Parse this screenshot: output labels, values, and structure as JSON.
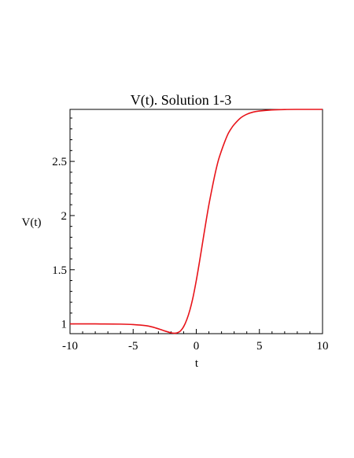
{
  "chart_data": {
    "type": "line",
    "title": "V(t). Solution 1-3",
    "xlabel": "t",
    "ylabel": "V(t)",
    "xlim": [
      -10,
      10
    ],
    "ylim": [
      0.91,
      2.98
    ],
    "xticks": [
      -10,
      -5,
      0,
      5,
      10
    ],
    "xtick_labels": [
      "-10",
      "-5",
      "0",
      "5",
      "10"
    ],
    "yticks": [
      1,
      1.5,
      2,
      2.5
    ],
    "ytick_labels": [
      "1",
      "1.5",
      "2",
      "2.5"
    ],
    "grid": false,
    "legend": "none",
    "series": [
      {
        "color": "#e8141a",
        "x": [
          -10,
          -8,
          -6,
          -5,
          -4,
          -3.5,
          -3,
          -2.5,
          -2,
          -1.75,
          -1.5,
          -1.25,
          -1,
          -0.75,
          -0.5,
          -0.25,
          0,
          0.25,
          0.5,
          0.75,
          1,
          1.25,
          1.5,
          1.75,
          2,
          2.25,
          2.5,
          2.75,
          3,
          3.5,
          4,
          4.5,
          5,
          6,
          7,
          8,
          10
        ],
        "y": [
          1.0,
          1.0,
          0.998,
          0.994,
          0.984,
          0.972,
          0.955,
          0.935,
          0.918,
          0.914,
          0.918,
          0.935,
          0.975,
          1.04,
          1.13,
          1.25,
          1.4,
          1.57,
          1.75,
          1.93,
          2.1,
          2.25,
          2.39,
          2.51,
          2.6,
          2.68,
          2.75,
          2.8,
          2.84,
          2.9,
          2.935,
          2.955,
          2.965,
          2.975,
          2.979,
          2.98,
          2.98
        ]
      }
    ]
  }
}
